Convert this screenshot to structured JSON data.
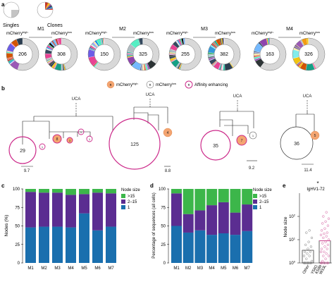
{
  "panel_letters": {
    "a": "a",
    "b": "b",
    "c": "c",
    "d": "d",
    "e": "e"
  },
  "legend_a": {
    "singles": "Singles",
    "clones": "Clones"
  },
  "mice": [
    {
      "label": "M1",
      "high_label": "mCherry",
      "high_sup": "high",
      "low_label": "mCherry",
      "low_sup": "low",
      "high_count": "206",
      "low_count": "308"
    },
    {
      "label": "M2",
      "high_label": "mCherry",
      "high_sup": "high",
      "low_label": "mCherry",
      "low_sup": "low",
      "high_count": "150",
      "low_count": "325"
    },
    {
      "label": "M3",
      "high_label": "mCherry",
      "high_sup": "high",
      "low_label": "mCherry",
      "low_sup": "low",
      "high_count": "255",
      "low_count": "382"
    },
    {
      "label": "M4",
      "high_label": "mCherry",
      "high_sup": "high",
      "low_label": "mCherry",
      "low_sup": "low",
      "high_count": "163",
      "low_count": "326"
    }
  ],
  "legend_b": {
    "symbol": "n",
    "high_text": "mCherry",
    "high_sup": "high",
    "low_text": "mCherry",
    "low_sup": "low",
    "affinity_text": "Affinity enhancing",
    "high_color": "#f4a571",
    "affinity_color": "#cc2a8a"
  },
  "trees": [
    {
      "ucas": "UCA",
      "big": "29",
      "orange1": "8",
      "orange2": "3",
      "small1": "1",
      "small2": "1",
      "small3": "1",
      "scale": "9.7"
    },
    {
      "ucas": "UCA",
      "big": "125",
      "orange1": "4",
      "scale": "8.8"
    },
    {
      "ucas": "UCA",
      "big": "35",
      "orange1": "7",
      "small1": "1",
      "scale": "9.2"
    },
    {
      "ucas": "UCA",
      "big": "36",
      "orange1": "5",
      "scale": "11.4"
    }
  ],
  "colors": {
    "gt15": "#3cb64a",
    "mid": "#5b2d91",
    "one": "#1a6fae"
  },
  "chart_data": [
    {
      "type": "bar",
      "stacked": true,
      "ylabel": "Nodes (%)",
      "categories": [
        "M1",
        "M2",
        "M3",
        "M4",
        "M5",
        "M6",
        "M7"
      ],
      "ylim": [
        0,
        100
      ],
      "yticks": [
        "0",
        "25",
        "50",
        "75",
        "100"
      ],
      "legend_title": "Node size",
      "legend_position": "right",
      "series": [
        {
          "name": "1",
          "values": [
            48,
            49,
            49,
            48,
            67,
            44,
            49
          ]
        },
        {
          "name": "2–15",
          "values": [
            48,
            46,
            46,
            44,
            26,
            51,
            45
          ]
        },
        {
          "name": ">15",
          "values": [
            4,
            5,
            5,
            8,
            7,
            5,
            6
          ]
        }
      ]
    },
    {
      "type": "bar",
      "stacked": true,
      "ylabel": "Percentage of sequences (all cells)",
      "categories": [
        "M1",
        "M2",
        "M3",
        "M4",
        "M5",
        "M6",
        "M7"
      ],
      "ylim": [
        0,
        100
      ],
      "yticks": [
        "0",
        "25",
        "50",
        "75",
        "100"
      ],
      "legend_title": "Node size",
      "legend_position": "right",
      "series": [
        {
          "name": "1",
          "values": [
            50,
            41,
            44,
            38,
            40,
            38,
            43
          ]
        },
        {
          "name": "2–15",
          "values": [
            44,
            25,
            27,
            40,
            42,
            30,
            36
          ]
        },
        {
          "name": ">15",
          "values": [
            6,
            34,
            29,
            22,
            18,
            32,
            21
          ]
        }
      ]
    },
    {
      "type": "bar",
      "title": "IgHV1-72",
      "ylabel": "Node size",
      "yscale": "log",
      "ylim": [
        1,
        1000
      ],
      "yticks": [
        {
          "base": "10",
          "exp": "0"
        },
        {
          "base": "10",
          "exp": "1"
        },
        {
          "base": "10",
          "exp": "2"
        }
      ],
      "significance": "*",
      "categories": [
        "Other",
        "W33L K59R Y58G"
      ],
      "category_lines": [
        [
          "Other"
        ],
        [
          "W33L",
          "K59R",
          "Y58G"
        ]
      ],
      "values": [
        3.5,
        9
      ],
      "points": [
        [
          1,
          1,
          1,
          1,
          1,
          1,
          1,
          1,
          1.2,
          1.5,
          2,
          2,
          2.5,
          3,
          3,
          4,
          5,
          6,
          8,
          12,
          20,
          25
        ],
        [
          1,
          1,
          1,
          1,
          1,
          1,
          1.2,
          1.5,
          2,
          2,
          2.5,
          3,
          3,
          4,
          4,
          5,
          6,
          7,
          8,
          10,
          12,
          14,
          16,
          18,
          20,
          25,
          30,
          40,
          50,
          60,
          80,
          100,
          150
        ]
      ],
      "point_colors": [
        "#7a7a7a",
        "#d2589b"
      ]
    }
  ]
}
